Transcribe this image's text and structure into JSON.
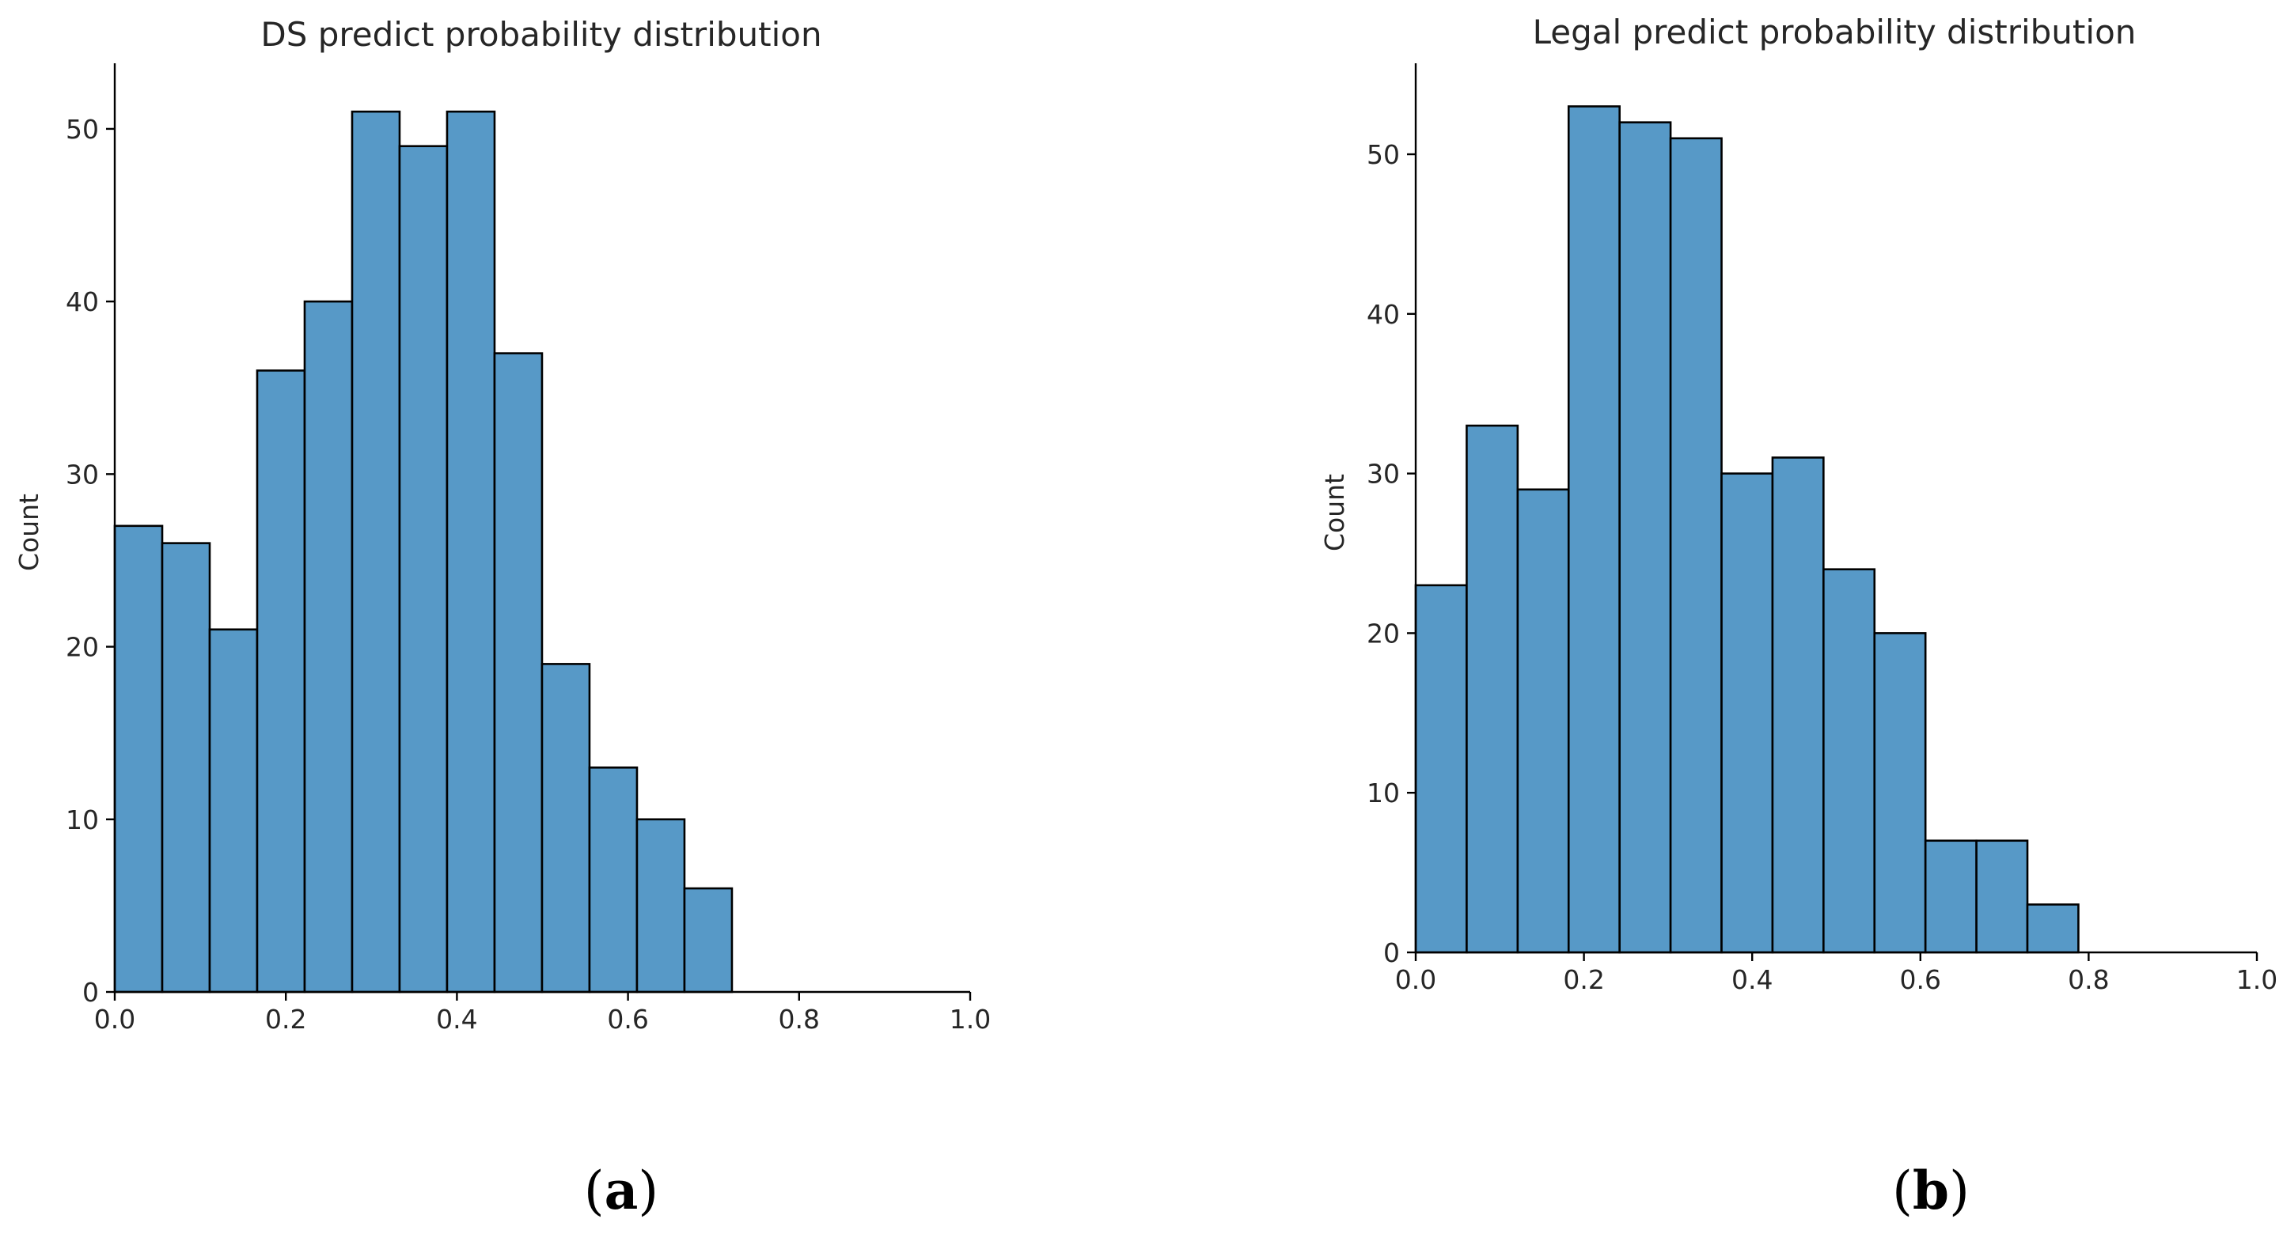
{
  "chart_data": [
    {
      "type": "bar",
      "subtype": "histogram",
      "title": "DS predict probability distribution",
      "xlabel": "",
      "ylabel": "Count",
      "bar_color": "#5799c7",
      "bin_width": 0.0555,
      "bins": [
        {
          "x0": 0.0,
          "count": 27
        },
        {
          "x0": 0.0555,
          "count": 26
        },
        {
          "x0": 0.111,
          "count": 21
        },
        {
          "x0": 0.1665,
          "count": 36
        },
        {
          "x0": 0.222,
          "count": 40
        },
        {
          "x0": 0.2775,
          "count": 51
        },
        {
          "x0": 0.333,
          "count": 49
        },
        {
          "x0": 0.3885,
          "count": 51
        },
        {
          "x0": 0.444,
          "count": 37
        },
        {
          "x0": 0.4995,
          "count": 19
        },
        {
          "x0": 0.555,
          "count": 13
        },
        {
          "x0": 0.6105,
          "count": 10
        },
        {
          "x0": 0.666,
          "count": 6
        }
      ],
      "xlim": [
        0.0,
        1.0
      ],
      "ylim": [
        0,
        53.8
      ],
      "xticks": [
        0.0,
        0.2,
        0.4,
        0.6,
        0.8,
        1.0
      ],
      "xtick_labels": [
        "0.0",
        "0.2",
        "0.4",
        "0.6",
        "0.8",
        "1.0"
      ],
      "yticks": [
        0,
        10,
        20,
        30,
        40,
        50
      ],
      "ytick_labels": [
        "0",
        "10",
        "20",
        "30",
        "40",
        "50"
      ],
      "grid": false,
      "panel_label": "a"
    },
    {
      "type": "bar",
      "subtype": "histogram",
      "title": "Legal predict probability distribution",
      "xlabel": "",
      "ylabel": "Count",
      "bar_color": "#5799c7",
      "bin_width": 0.0606,
      "bins": [
        {
          "x0": 0.0,
          "count": 23
        },
        {
          "x0": 0.0606,
          "count": 33
        },
        {
          "x0": 0.1212,
          "count": 29
        },
        {
          "x0": 0.1818,
          "count": 53
        },
        {
          "x0": 0.2424,
          "count": 52
        },
        {
          "x0": 0.303,
          "count": 51
        },
        {
          "x0": 0.3636,
          "count": 30
        },
        {
          "x0": 0.4242,
          "count": 31
        },
        {
          "x0": 0.4848,
          "count": 24
        },
        {
          "x0": 0.5454,
          "count": 20
        },
        {
          "x0": 0.606,
          "count": 7
        },
        {
          "x0": 0.6666,
          "count": 7
        },
        {
          "x0": 0.7272,
          "count": 3
        }
      ],
      "xlim": [
        0.0,
        1.0
      ],
      "ylim": [
        0,
        55.7
      ],
      "xticks": [
        0.0,
        0.2,
        0.4,
        0.6,
        0.8,
        1.0
      ],
      "xtick_labels": [
        "0.0",
        "0.2",
        "0.4",
        "0.6",
        "0.8",
        "1.0"
      ],
      "yticks": [
        0,
        10,
        20,
        30,
        40,
        50
      ],
      "ytick_labels": [
        "0",
        "10",
        "20",
        "30",
        "40",
        "50"
      ],
      "grid": false,
      "panel_label": "b"
    }
  ],
  "panel_labels": {
    "a": {
      "open": "(",
      "letter": "a",
      "close": ")"
    },
    "b": {
      "open": "(",
      "letter": "b",
      "close": ")"
    }
  }
}
